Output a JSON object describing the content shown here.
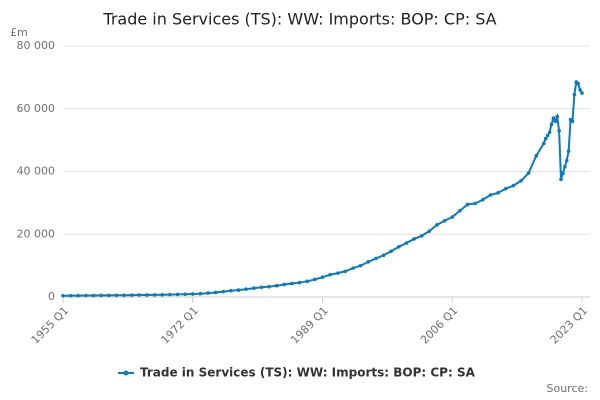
{
  "chart_data": {
    "type": "line",
    "title": "Trade in Services (TS): WW: Imports: BOP: CP: SA",
    "y_unit": "£m",
    "source": "Source:",
    "x": [
      "1955 Q1",
      "1956 Q1",
      "1957 Q1",
      "1958 Q1",
      "1959 Q1",
      "1960 Q1",
      "1961 Q1",
      "1962 Q1",
      "1963 Q1",
      "1964 Q1",
      "1965 Q1",
      "1966 Q1",
      "1967 Q1",
      "1968 Q1",
      "1969 Q1",
      "1970 Q1",
      "1971 Q1",
      "1972 Q1",
      "1973 Q1",
      "1974 Q1",
      "1975 Q1",
      "1976 Q1",
      "1977 Q1",
      "1978 Q1",
      "1979 Q1",
      "1980 Q1",
      "1981 Q1",
      "1982 Q1",
      "1983 Q1",
      "1984 Q1",
      "1985 Q1",
      "1986 Q1",
      "1987 Q1",
      "1988 Q1",
      "1989 Q1",
      "1990 Q1",
      "1991 Q1",
      "1992 Q1",
      "1993 Q1",
      "1994 Q1",
      "1995 Q1",
      "1996 Q1",
      "1997 Q1",
      "1998 Q1",
      "1999 Q1",
      "2000 Q1",
      "2001 Q1",
      "2002 Q1",
      "2003 Q1",
      "2004 Q1",
      "2005 Q1",
      "2006 Q1",
      "2007 Q1",
      "2008 Q1",
      "2009 Q1",
      "2010 Q1",
      "2011 Q1",
      "2012 Q1",
      "2013 Q1",
      "2014 Q1",
      "2015 Q1",
      "2016 Q1",
      "2017 Q1",
      "2018 Q1",
      "2018 Q2",
      "2018 Q3",
      "2018 Q4",
      "2019 Q1",
      "2019 Q2",
      "2019 Q3",
      "2019 Q4",
      "2020 Q1",
      "2020 Q2",
      "2020 Q3",
      "2020 Q4",
      "2021 Q1",
      "2021 Q2",
      "2021 Q3",
      "2021 Q4",
      "2022 Q1",
      "2022 Q2",
      "2022 Q3",
      "2022 Q4",
      "2023 Q1"
    ],
    "series": [
      {
        "name": "Trade in Services (TS): WW: Imports: BOP: CP: SA",
        "color": "#0a7bbd",
        "values": [
          400,
          420,
          440,
          460,
          480,
          500,
          520,
          540,
          560,
          590,
          620,
          650,
          680,
          720,
          760,
          820,
          880,
          950,
          1050,
          1250,
          1450,
          1700,
          2000,
          2200,
          2500,
          2800,
          3100,
          3300,
          3600,
          4000,
          4300,
          4600,
          5000,
          5600,
          6300,
          7100,
          7600,
          8200,
          9200,
          10000,
          11200,
          12300,
          13300,
          14600,
          16000,
          17200,
          18500,
          19500,
          21000,
          23000,
          24300,
          25500,
          27500,
          29500,
          29800,
          31000,
          32500,
          33200,
          34500,
          35500,
          37000,
          39500,
          45000,
          49000,
          50500,
          51500,
          52500,
          55000,
          57000,
          56000,
          57500,
          53000,
          37500,
          39500,
          41500,
          43500,
          46500,
          56500,
          56000,
          64500,
          68500,
          68000,
          66000,
          65000
        ]
      }
    ],
    "xticks": [
      "1955 Q1",
      "1972 Q1",
      "1989 Q1",
      "2006 Q1",
      "2023 Q1"
    ],
    "ylim": [
      0,
      80000
    ],
    "yticks": [
      0,
      {
        "value": 20000,
        "label": "20 000"
      },
      {
        "value": 40000,
        "label": "40 000"
      },
      {
        "value": 60000,
        "label": "60 000"
      },
      {
        "value": 80000,
        "label": "80 000"
      }
    ],
    "grid": true
  }
}
